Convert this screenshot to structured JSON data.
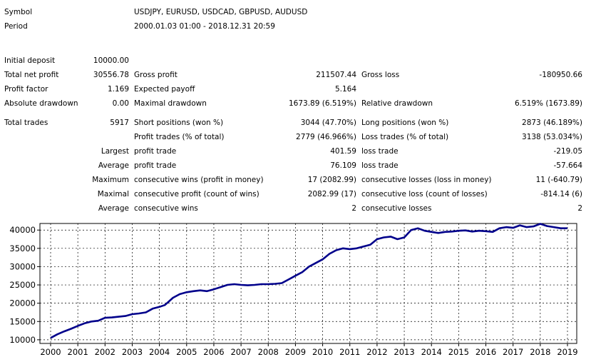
{
  "header": {
    "symbol_label": "Symbol",
    "symbol_value": "USDJPY, EURUSD, USDCAD, GBPUSD, AUDUSD",
    "period_label": "Period",
    "period_value": "2000.01.03 01:00 - 2018.12.31 20:59"
  },
  "stats": [
    {
      "id": "initial-deposit",
      "c1": "Initial deposit",
      "v1": "10000.00"
    },
    {
      "id": "net-profit",
      "c1": "Total net profit",
      "v1": "30556.78",
      "c2": "Gross profit",
      "v2": "211507.44",
      "c3": "Gross loss",
      "v3": "-180950.66"
    },
    {
      "id": "profit-factor",
      "c1": "Profit factor",
      "v1": "1.169",
      "c2": "Expected payoff",
      "v2": "5.164"
    },
    {
      "id": "drawdown",
      "c1": "Absolute drawdown",
      "v1": "0.00",
      "c2": "Maximal drawdown",
      "v2": "1673.89 (6.519%)",
      "c3": "Relative drawdown",
      "v3": "6.519% (1673.89)"
    },
    {
      "id": "total-trades",
      "c1": "Total trades",
      "v1": "5917",
      "c2": "Short positions (won %)",
      "v2": "3044 (47.70%)",
      "c3": "Long positions (won %)",
      "v3": "2873 (46.189%)"
    },
    {
      "id": "profit-trades",
      "c2": "Profit trades (% of total)",
      "v2": "2779 (46.966%)",
      "c3": "Loss trades (% of total)",
      "v3": "3138 (53.034%)"
    },
    {
      "id": "largest",
      "v1": "Largest",
      "c2": "profit trade",
      "v2": "401.59",
      "c3": "loss trade",
      "v3": "-219.05"
    },
    {
      "id": "average",
      "v1": "Average",
      "c2": "profit trade",
      "v2": "76.109",
      "c3": "loss trade",
      "v3": "-57.664"
    },
    {
      "id": "max-consecutive",
      "v1": "Maximum",
      "c2": "consecutive wins (profit in money)",
      "v2": "17 (2082.99)",
      "c3": "consecutive losses (loss in money)",
      "v3": "11 (-640.79)"
    },
    {
      "id": "maximal-consecutive",
      "v1": "Maximal",
      "c2": "consecutive profit (count of wins)",
      "v2": "2082.99 (17)",
      "c3": "consecutive loss (count of losses)",
      "v3": "-814.14 (6)"
    },
    {
      "id": "avg-consecutive",
      "v1": "Average",
      "c2": "consecutive wins",
      "v2": "2",
      "c3": "consecutive losses",
      "v3": "2"
    }
  ],
  "chart_data": {
    "type": "line",
    "title": "",
    "xlabel": "",
    "ylabel": "",
    "x_ticks": [
      "2000",
      "2001",
      "2002",
      "2003",
      "2004",
      "2005",
      "2006",
      "2007",
      "2008",
      "2009",
      "2010",
      "2011",
      "2012",
      "2013",
      "2014",
      "2015",
      "2016",
      "2017",
      "2018",
      "2019"
    ],
    "y_ticks": [
      10000,
      15000,
      20000,
      25000,
      30000,
      35000,
      40000
    ],
    "ylim": [
      9000,
      41800
    ],
    "xlim": [
      2000.0,
      2019.0
    ],
    "grid": true,
    "line_color": "#00008b",
    "series": [
      {
        "x": [
          2000.0,
          2000.25,
          2000.5,
          2000.75,
          2001.0,
          2001.25,
          2001.5,
          2001.75,
          2002.0,
          2002.25,
          2002.5,
          2002.75,
          2003.0,
          2003.25,
          2003.5,
          2003.75,
          2004.0,
          2004.2,
          2004.5,
          2004.75,
          2005.0,
          2005.25,
          2005.5,
          2005.75,
          2006.0,
          2006.25,
          2006.5,
          2006.75,
          2007.0,
          2007.25,
          2007.5,
          2007.75,
          2008.0,
          2008.25,
          2008.5,
          2008.75,
          2009.0,
          2009.25,
          2009.5,
          2009.75,
          2010.0,
          2010.25,
          2010.5,
          2010.75,
          2011.0,
          2011.25,
          2011.5,
          2011.75,
          2012.0,
          2012.25,
          2012.5,
          2012.75,
          2013.0,
          2013.25,
          2013.5,
          2013.75,
          2014.0,
          2014.25,
          2014.5,
          2014.75,
          2015.0,
          2015.25,
          2015.5,
          2015.75,
          2016.0,
          2016.25,
          2016.5,
          2016.75,
          2017.0,
          2017.25,
          2017.5,
          2017.75,
          2018.0,
          2018.25,
          2018.5,
          2018.75,
          2019.0
        ],
        "y": [
          10500,
          11500,
          12300,
          13000,
          13800,
          14500,
          15000,
          15200,
          16000,
          16100,
          16300,
          16500,
          17000,
          17200,
          17500,
          18500,
          19000,
          19500,
          21500,
          22500,
          23000,
          23300,
          23500,
          23300,
          23800,
          24400,
          25000,
          25200,
          25000,
          24900,
          25000,
          25200,
          25200,
          25300,
          25500,
          26500,
          27500,
          28500,
          30000,
          31000,
          32000,
          33500,
          34500,
          35000,
          34800,
          35000,
          35500,
          36000,
          37500,
          38000,
          38200,
          37500,
          38000,
          40000,
          40500,
          39800,
          39500,
          39200,
          39500,
          39600,
          39800,
          39900,
          39600,
          39800,
          39700,
          39500,
          40500,
          40800,
          40600,
          41300,
          40800,
          41000,
          41700,
          41100,
          40800,
          40500,
          40500
        ]
      }
    ]
  }
}
